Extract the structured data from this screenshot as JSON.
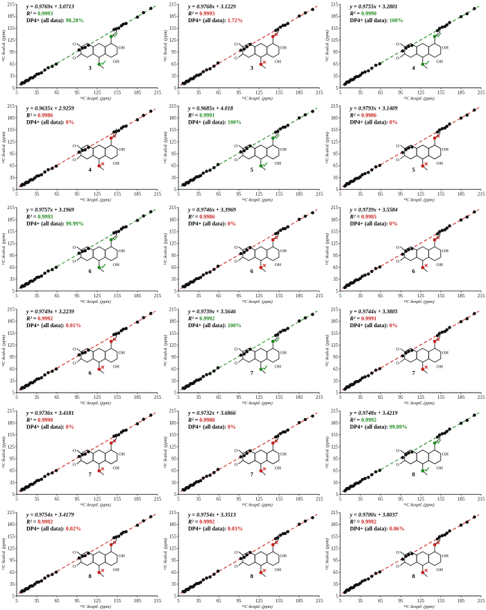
{
  "figure": {
    "y_axis_label": "¹³C δcalcd. (ppm)",
    "x_axis_label": "¹³C δexptl. (ppm)",
    "colors": {
      "green": "#1f8a1f",
      "red": "#c8231e",
      "point": "#111111",
      "structure": "#1a1a1a"
    }
  },
  "chart_data": [
    {
      "type": "scatter",
      "equation": "y = 0.9769x + 3.0713",
      "r2_label": "R² = ",
      "r2": "0.9993",
      "dp4_label": "DP4+ (all data): ",
      "dp4": "98.28%",
      "status": "green",
      "compound": "3",
      "slope": 0.9769,
      "intercept": 3.0713,
      "xlim": [
        5,
        215
      ],
      "ylim": [
        5,
        215
      ],
      "x_ticks": [
        "5",
        "35",
        "65",
        "95",
        "125",
        "155",
        "185",
        "215"
      ],
      "y_ticks": [
        "5",
        "35",
        "65",
        "95",
        "125",
        "155",
        "185",
        "215"
      ]
    },
    {
      "type": "scatter",
      "equation": "y = 0.9768x + 3.1229",
      "r2_label": "R² = ",
      "r2": "0.9993",
      "dp4_label": "DP4+ (all data): ",
      "dp4": "1.72%",
      "status": "red",
      "compound": "3",
      "slope": 0.9768,
      "intercept": 3.1229,
      "xlim": [
        5,
        215
      ],
      "ylim": [
        5,
        215
      ],
      "x_ticks": [
        "5",
        "35",
        "65",
        "95",
        "125",
        "155",
        "185",
        "215"
      ],
      "y_ticks": [
        "5",
        "35",
        "65",
        "95",
        "125",
        "155",
        "185",
        "215"
      ]
    },
    {
      "type": "scatter",
      "equation": "y = 0.9755x + 3.2801",
      "r2_label": "R² = ",
      "r2": "0.9990",
      "dp4_label": "DP4+ (all data): ",
      "dp4": "100%",
      "status": "green",
      "compound": "4",
      "slope": 0.9755,
      "intercept": 3.2801,
      "xlim": [
        5,
        215
      ],
      "ylim": [
        5,
        215
      ],
      "x_ticks": [
        "5",
        "35",
        "65",
        "95",
        "125",
        "155",
        "185",
        "215"
      ],
      "y_ticks": [
        "5",
        "35",
        "65",
        "95",
        "125",
        "155",
        "185",
        "215"
      ]
    },
    {
      "type": "scatter",
      "equation": "y = 0.9635x + 2.9259",
      "r2_label": "R² = ",
      "r2": "0.9986",
      "dp4_label": "DP4+ (all data): ",
      "dp4": "0%",
      "status": "red",
      "compound": "4",
      "slope": 0.9635,
      "intercept": 2.9259,
      "xlim": [
        5,
        215
      ],
      "ylim": [
        5,
        215
      ],
      "x_ticks": [
        "5",
        "35",
        "65",
        "95",
        "125",
        "155",
        "185",
        "215"
      ],
      "y_ticks": [
        "5",
        "35",
        "65",
        "95",
        "125",
        "155",
        "185",
        "215"
      ]
    },
    {
      "type": "scatter",
      "equation": "y = 0.9685x + 4.018",
      "r2_label": "R² = ",
      "r2": "0.9991",
      "dp4_label": "DP4+ (all data): ",
      "dp4": "100%",
      "status": "green",
      "compound": "5",
      "slope": 0.9685,
      "intercept": 4.018,
      "xlim": [
        5,
        215
      ],
      "ylim": [
        5,
        215
      ],
      "x_ticks": [
        "5",
        "35",
        "65",
        "95",
        "125",
        "155",
        "185",
        "215"
      ],
      "y_ticks": [
        "5",
        "35",
        "65",
        "95",
        "125",
        "155",
        "185",
        "215"
      ]
    },
    {
      "type": "scatter",
      "equation": "y = 0.9793x + 3.1409",
      "r2_label": "R² = ",
      "r2": "0.9986",
      "dp4_label": "DP4+ (all data): ",
      "dp4": "0%",
      "status": "red",
      "compound": "5",
      "slope": 0.9793,
      "intercept": 3.1409,
      "xlim": [
        5,
        215
      ],
      "ylim": [
        5,
        215
      ],
      "x_ticks": [
        "5",
        "35",
        "65",
        "95",
        "125",
        "155",
        "185",
        "215"
      ],
      "y_ticks": [
        "5",
        "35",
        "65",
        "95",
        "125",
        "155",
        "185",
        "215"
      ]
    },
    {
      "type": "scatter",
      "equation": "y = 0.9757x + 3.1969",
      "r2_label": "R² = ",
      "r2": "0.9993",
      "dp4_label": "DP4+ (all data): ",
      "dp4": "99.99%",
      "status": "green",
      "compound": "6",
      "slope": 0.9757,
      "intercept": 3.1969,
      "xlim": [
        5,
        215
      ],
      "ylim": [
        5,
        215
      ],
      "x_ticks": [
        "5",
        "35",
        "65",
        "95",
        "125",
        "155",
        "185",
        "215"
      ],
      "y_ticks": [
        "5",
        "35",
        "65",
        "95",
        "125",
        "155",
        "185",
        "215"
      ]
    },
    {
      "type": "scatter",
      "equation": "y = 0.9746x + 3.3969",
      "r2_label": "R² = ",
      "r2": "0.9986",
      "dp4_label": "DP4+ (all data): ",
      "dp4": "0%",
      "status": "red",
      "compound": "6",
      "slope": 0.9746,
      "intercept": 3.3969,
      "xlim": [
        5,
        215
      ],
      "ylim": [
        5,
        215
      ],
      "x_ticks": [
        "5",
        "35",
        "65",
        "95",
        "125",
        "155",
        "185",
        "215"
      ],
      "y_ticks": [
        "5",
        "35",
        "65",
        "95",
        "125",
        "155",
        "185",
        "215"
      ]
    },
    {
      "type": "scatter",
      "equation": "y = 0.9739x + 3.5584",
      "r2_label": "R² = ",
      "r2": "0.9985",
      "dp4_label": "DP4+ (all data): ",
      "dp4": "0%",
      "status": "red",
      "compound": "6",
      "slope": 0.9739,
      "intercept": 3.5584,
      "xlim": [
        5,
        215
      ],
      "ylim": [
        5,
        215
      ],
      "x_ticks": [
        "5",
        "35",
        "65",
        "95",
        "125",
        "155",
        "185",
        "215"
      ],
      "y_ticks": [
        "5",
        "35",
        "65",
        "95",
        "125",
        "155",
        "185",
        "215"
      ]
    },
    {
      "type": "scatter",
      "equation": "y = 0.9749x + 3.2239",
      "r2_label": "R² = ",
      "r2": "0.9992",
      "dp4_label": "DP4+ (all data): ",
      "dp4": "0.01%",
      "status": "red",
      "compound": "6",
      "slope": 0.9749,
      "intercept": 3.2239,
      "xlim": [
        5,
        215
      ],
      "ylim": [
        5,
        215
      ],
      "x_ticks": [
        "5",
        "35",
        "65",
        "95",
        "125",
        "155",
        "185",
        "215"
      ],
      "y_ticks": [
        "5",
        "35",
        "65",
        "95",
        "125",
        "155",
        "185",
        "215"
      ]
    },
    {
      "type": "scatter",
      "equation": "y = 0.9739x + 3.5646",
      "r2_label": "R² = ",
      "r2": "0.9992",
      "dp4_label": "DP4+ (all data): ",
      "dp4": "100%",
      "status": "green",
      "compound": "7",
      "slope": 0.9739,
      "intercept": 3.5646,
      "xlim": [
        5,
        215
      ],
      "ylim": [
        5,
        215
      ],
      "x_ticks": [
        "5",
        "35",
        "65",
        "95",
        "125",
        "155",
        "185",
        "215"
      ],
      "y_ticks": [
        "5",
        "35",
        "65",
        "95",
        "125",
        "155",
        "185",
        "215"
      ]
    },
    {
      "type": "scatter",
      "equation": "y = 0.9744x + 3.3805",
      "r2_label": "R² = ",
      "r2": "0.9991",
      "dp4_label": "DP4+ (all data): ",
      "dp4": "0%",
      "status": "red",
      "compound": "7",
      "slope": 0.9744,
      "intercept": 3.3805,
      "xlim": [
        5,
        215
      ],
      "ylim": [
        5,
        215
      ],
      "x_ticks": [
        "5",
        "35",
        "65",
        "95",
        "125",
        "155",
        "185",
        "215"
      ],
      "y_ticks": [
        "5",
        "35",
        "65",
        "95",
        "125",
        "155",
        "185",
        "215"
      ]
    },
    {
      "type": "scatter",
      "equation": "y = 0.9736x + 3.4181",
      "r2_label": "R² = ",
      "r2": "0.9990",
      "dp4_label": "DP4+ (all data): ",
      "dp4": "0%",
      "status": "red",
      "compound": "7",
      "slope": 0.9736,
      "intercept": 3.4181,
      "xlim": [
        5,
        215
      ],
      "ylim": [
        5,
        215
      ],
      "x_ticks": [
        "5",
        "35",
        "65",
        "95",
        "125",
        "155",
        "185",
        "215"
      ],
      "y_ticks": [
        "5",
        "35",
        "65",
        "95",
        "125",
        "155",
        "185",
        "215"
      ]
    },
    {
      "type": "scatter",
      "equation": "y = 0.9732x + 3.6866",
      "r2_label": "R² = ",
      "r2": "0.9988",
      "dp4_label": "DP4+ (all data): ",
      "dp4": "0%",
      "status": "red",
      "compound": "7",
      "slope": 0.9732,
      "intercept": 3.6866,
      "xlim": [
        5,
        215
      ],
      "ylim": [
        5,
        215
      ],
      "x_ticks": [
        "5",
        "35",
        "65",
        "95",
        "125",
        "155",
        "185",
        "215"
      ],
      "y_ticks": [
        "5",
        "35",
        "65",
        "95",
        "125",
        "155",
        "185",
        "215"
      ]
    },
    {
      "type": "scatter",
      "equation": "y = 0.9748x + 3.4219",
      "r2_label": "R² = ",
      "r2": "0.9992",
      "dp4_label": "DP4+ (all data): ",
      "dp4": "99.89%",
      "status": "green",
      "compound": "8",
      "slope": 0.9748,
      "intercept": 3.4219,
      "xlim": [
        5,
        215
      ],
      "ylim": [
        5,
        215
      ],
      "x_ticks": [
        "5",
        "35",
        "65",
        "95",
        "125",
        "155",
        "185",
        "215"
      ],
      "y_ticks": [
        "5",
        "35",
        "65",
        "95",
        "125",
        "155",
        "185",
        "215"
      ]
    },
    {
      "type": "scatter",
      "equation": "y = 0.9754x + 3.4179",
      "r2_label": "R² = ",
      "r2": "0.9992",
      "dp4_label": "DP4+ (all data): ",
      "dp4": "0.02%",
      "status": "red",
      "compound": "8",
      "slope": 0.9754,
      "intercept": 3.4179,
      "xlim": [
        5,
        215
      ],
      "ylim": [
        5,
        215
      ],
      "x_ticks": [
        "5",
        "35",
        "65",
        "95",
        "125",
        "155",
        "185",
        "215"
      ],
      "y_ticks": [
        "5",
        "35",
        "65",
        "95",
        "125",
        "155",
        "185",
        "215"
      ]
    },
    {
      "type": "scatter",
      "equation": "y = 0.9754x + 3.3513",
      "r2_label": "R² = ",
      "r2": "0.9992",
      "dp4_label": "DP4+ (all data): ",
      "dp4": "0.03%",
      "status": "red",
      "compound": "8",
      "slope": 0.9754,
      "intercept": 3.3513,
      "xlim": [
        5,
        215
      ],
      "ylim": [
        5,
        215
      ],
      "x_ticks": [
        "5",
        "35",
        "65",
        "95",
        "125",
        "155",
        "185",
        "215"
      ],
      "y_ticks": [
        "5",
        "35",
        "65",
        "95",
        "125",
        "155",
        "185",
        "215"
      ]
    },
    {
      "type": "scatter",
      "equation": "y = 0.9700x + 3.8037",
      "r2_label": "R² = ",
      "r2": "0.9992",
      "dp4_label": "DP4+ (all data): ",
      "dp4": "0.06%",
      "status": "red",
      "compound": "8",
      "slope": 0.97,
      "intercept": 3.8037,
      "xlim": [
        5,
        215
      ],
      "ylim": [
        5,
        215
      ],
      "x_ticks": [
        "5",
        "35",
        "65",
        "95",
        "125",
        "155",
        "185",
        "215"
      ],
      "y_ticks": [
        "5",
        "35",
        "65",
        "95",
        "125",
        "155",
        "185",
        "215"
      ]
    }
  ],
  "shift_points": [
    12,
    13.5,
    15,
    16.5,
    18,
    19.5,
    21,
    23,
    25,
    27,
    29,
    32,
    35,
    38,
    42,
    47,
    52,
    58,
    64,
    98,
    103,
    107,
    112,
    150,
    153,
    157,
    161,
    164,
    168,
    185,
    194,
    205
  ]
}
